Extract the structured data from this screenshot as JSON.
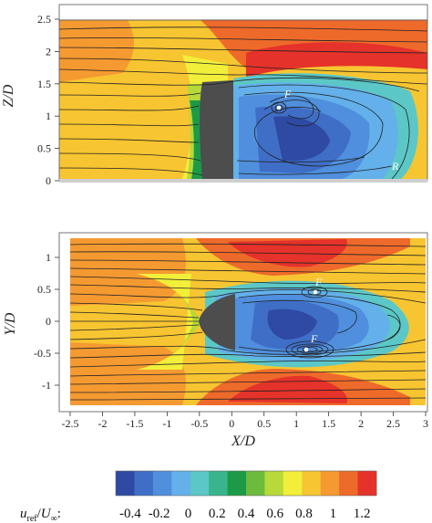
{
  "chart_data": [
    {
      "type": "heatmap",
      "id": "side-view",
      "ylabel": "Z/D",
      "xlim": [
        -2.5,
        3
      ],
      "ylim": [
        0,
        2.5
      ],
      "yticks": [
        0,
        0.5,
        1,
        1.5,
        2,
        2.5
      ],
      "ytick_labels": [
        "0",
        "0.5",
        "1",
        "1.5",
        "2",
        "2.5"
      ],
      "annotations": [
        {
          "text": "F",
          "x": 0.75,
          "y": 1.1
        },
        {
          "text": "R",
          "x": 2.6,
          "y": 0.1
        }
      ]
    },
    {
      "type": "heatmap",
      "id": "top-view",
      "xlabel": "X/D",
      "ylabel": "Y/D",
      "xlim": [
        -2.5,
        3
      ],
      "ylim": [
        -1.3,
        1.3
      ],
      "xticks": [
        -2.5,
        -2,
        -1.5,
        -1,
        -0.5,
        0,
        0.5,
        1,
        1.5,
        2,
        2.5,
        3
      ],
      "xtick_labels": [
        "-2.5",
        "-2",
        "-1.5",
        "-1",
        "-0.5",
        "0",
        "0.5",
        "1",
        "1.5",
        "2",
        "2.5",
        "3"
      ],
      "yticks": [
        -1,
        -0.5,
        0,
        0.5,
        1
      ],
      "ytick_labels": [
        "-1",
        "-0.5",
        "0",
        "0.5",
        "1"
      ],
      "annotations": [
        {
          "text": "F",
          "x": 1.3,
          "y": 0.5
        },
        {
          "text": "F",
          "x": 1.2,
          "y": -0.33
        }
      ]
    }
  ],
  "colorbar": {
    "label": "u_ref/U_∞:",
    "label_parts": {
      "u": "u",
      "sub": "ref",
      "slash": "/",
      "U": "U",
      "inf": "∞",
      "colon": ":"
    },
    "ticks": [
      -0.4,
      -0.2,
      0,
      0.2,
      0.4,
      0.6,
      0.8,
      1,
      1.2
    ],
    "tick_labels": [
      "-0.4",
      "-0.2",
      "0",
      "0.2",
      "0.4",
      "0.6",
      "0.8",
      "1",
      "1.2"
    ],
    "range": [
      -0.5,
      1.3
    ],
    "colors": [
      "#2e4aa3",
      "#3f6ec7",
      "#4f8fdd",
      "#63b0ea",
      "#5cc7c7",
      "#38b58c",
      "#1d9a48",
      "#6cbb3c",
      "#b7d93a",
      "#f2ef3a",
      "#f7c531",
      "#f59a31",
      "#ee6a2b",
      "#e5322a"
    ]
  }
}
